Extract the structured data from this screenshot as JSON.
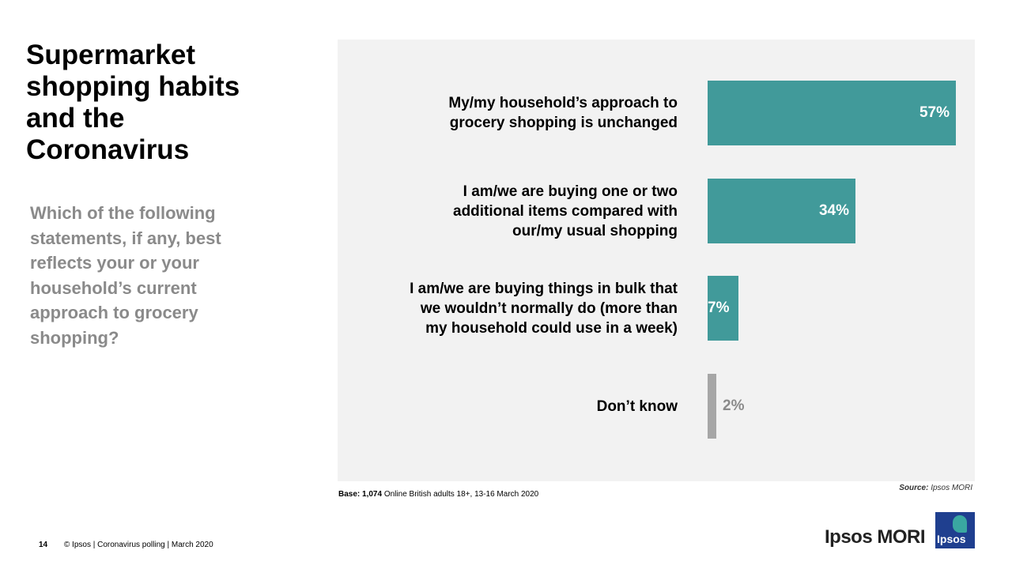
{
  "slide": {
    "title": "Supermarket shopping habits and the Coronavirus",
    "question": "Which of the following statements, if any, best reflects your or your household’s current approach to grocery shopping?",
    "base_label": "Base:",
    "base_value": "1,074",
    "base_text": "Online British adults 18+,  13-16 March 2020",
    "source_label": "Source:",
    "source_value": "Ipsos MORI",
    "page_number": "14",
    "footer_text": "© Ipsos | Coronavirus polling | March 2020",
    "brand": "Ipsos MORI",
    "logo_text": "Ipsos"
  },
  "colors": {
    "bar_primary": "#419a9a",
    "bar_neutral": "#a6a6a6",
    "panel_bg": "#f2f2f2",
    "value_inside": "#ffffff",
    "value_outside": "#8a8a8a"
  },
  "chart_data": {
    "type": "bar",
    "orientation": "horizontal",
    "categories": [
      "My/my household’s approach to grocery shopping is unchanged",
      "I am/we are buying one or two additional items compared with our/my usual shopping",
      "I am/we are buying things in bulk that we wouldn’t normally do (more than my household could use in a week)",
      "Don’t know"
    ],
    "values": [
      57,
      34,
      7,
      2
    ],
    "value_labels": [
      "57%",
      "34%",
      "7%",
      "2%"
    ],
    "xlim": [
      0,
      60
    ],
    "grid": false
  }
}
